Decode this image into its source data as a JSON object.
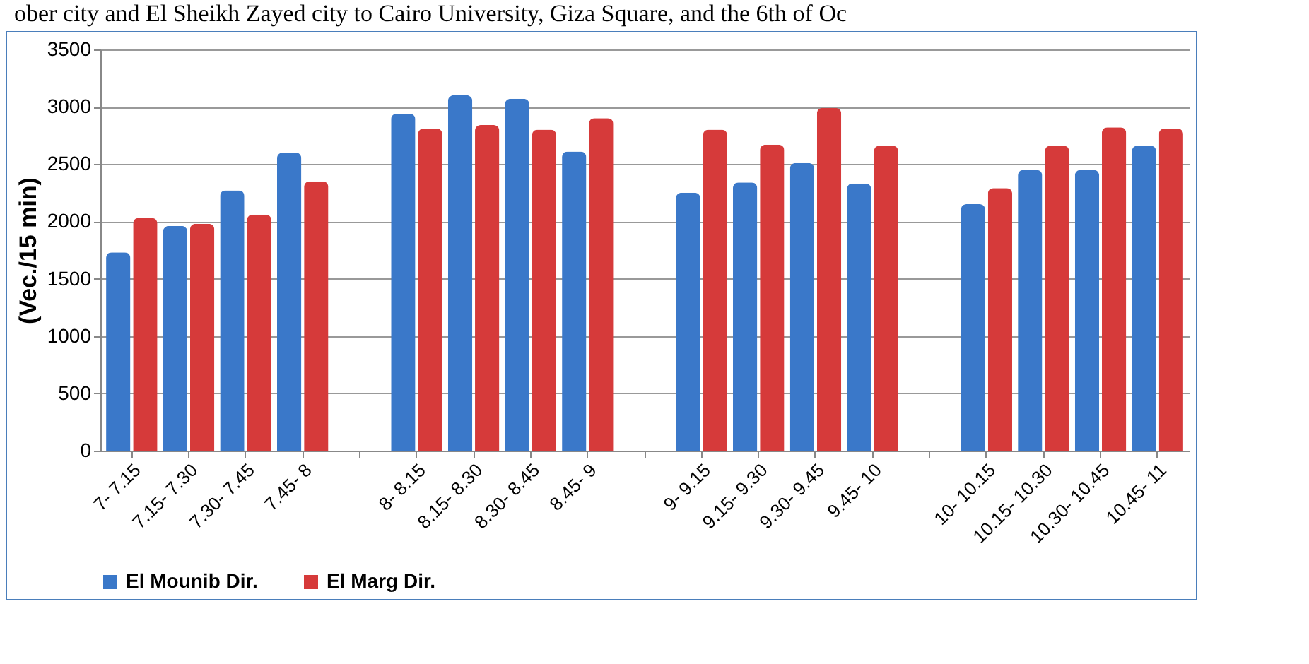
{
  "chart_data": {
    "type": "bar",
    "annotations": [
      "ober city and El Sheikh Zayed city to Cairo University, Giza Square, and the 6th of Oc"
    ],
    "ylabel": "(Vec./15 min)",
    "categories": [
      "7- 7.15",
      "7.15- 7.30",
      "7.30- 7.45",
      "7.45- 8",
      null,
      "8- 8.15",
      "8.15- 8.30",
      "8.30- 8.45",
      "8.45- 9",
      null,
      "9- 9.15",
      "9.15- 9.30",
      "9.30- 9.45",
      "9.45- 10",
      null,
      "10- 10.15",
      "10.15- 10.30",
      "10.30- 10.45",
      "10.45- 11"
    ],
    "series": [
      {
        "name": "El Mounib Dir.",
        "color": "#3a78c9",
        "values": [
          1730,
          1960,
          2270,
          2600,
          null,
          2940,
          3100,
          3070,
          2610,
          null,
          2250,
          2340,
          2510,
          2330,
          null,
          2150,
          2450,
          2450,
          2660
        ]
      },
      {
        "name": "El Marg Dir.",
        "color": "#d63a3a",
        "values": [
          2030,
          1980,
          2060,
          2350,
          null,
          2810,
          2840,
          2800,
          2900,
          null,
          2800,
          2670,
          2990,
          2660,
          null,
          2290,
          2660,
          2820,
          2810
        ]
      }
    ],
    "ylim": [
      0,
      3500
    ],
    "yticks": [
      0,
      500,
      1000,
      1500,
      2000,
      2500,
      3000,
      3500
    ],
    "grid": "y",
    "legend": "bottom"
  }
}
